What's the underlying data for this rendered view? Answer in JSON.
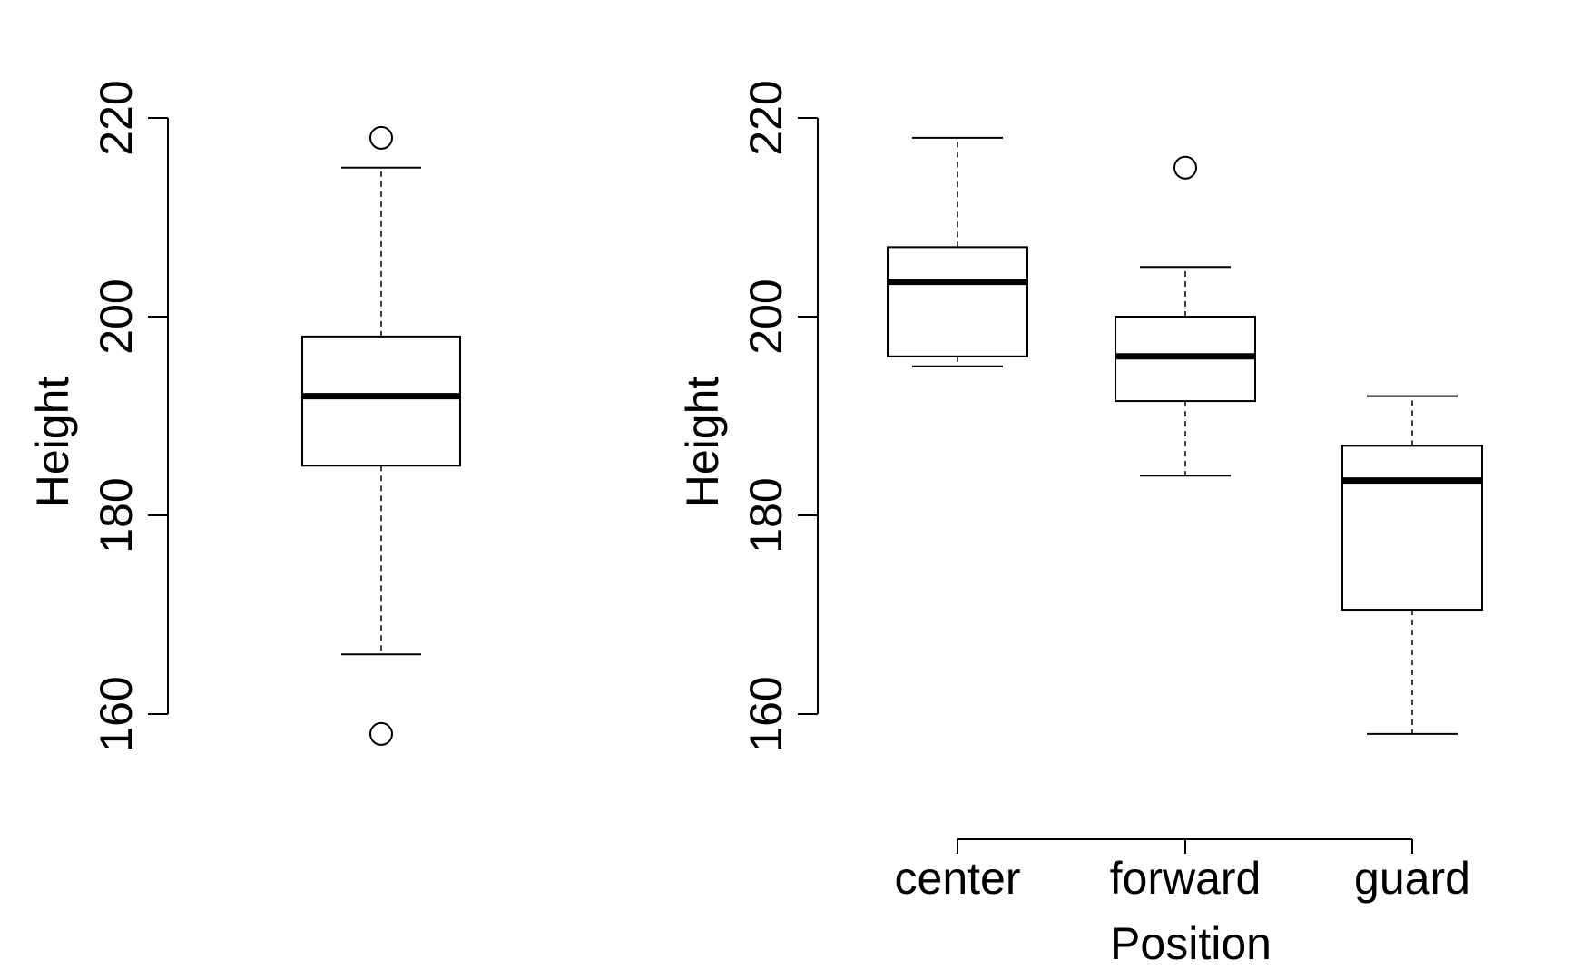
{
  "chart_data": [
    {
      "type": "box",
      "title": "",
      "xlabel": "",
      "ylabel": "Height",
      "ylim": [
        155,
        225
      ],
      "yticks": [
        "160",
        "180",
        "200",
        "220"
      ],
      "boxes": [
        {
          "name": "",
          "whisker_low": 166,
          "q1": 185,
          "median": 192,
          "q3": 198,
          "whisker_high": 215,
          "outliers": [
            218,
            158
          ]
        }
      ]
    },
    {
      "type": "box",
      "title": "",
      "xlabel": "Position",
      "ylabel": "Height",
      "ylim": [
        155,
        225
      ],
      "yticks": [
        "160",
        "180",
        "200",
        "220"
      ],
      "categories": [
        "center",
        "forward",
        "guard"
      ],
      "boxes": [
        {
          "name": "center",
          "whisker_low": 195,
          "q1": 196,
          "median": 203.5,
          "q3": 207,
          "whisker_high": 218,
          "outliers": []
        },
        {
          "name": "forward",
          "whisker_low": 184,
          "q1": 191.5,
          "median": 196,
          "q3": 200,
          "whisker_high": 205,
          "outliers": [
            215
          ]
        },
        {
          "name": "guard",
          "whisker_low": 158,
          "q1": 170.5,
          "median": 183.5,
          "q3": 187,
          "whisker_high": 192,
          "outliers": []
        }
      ]
    }
  ]
}
